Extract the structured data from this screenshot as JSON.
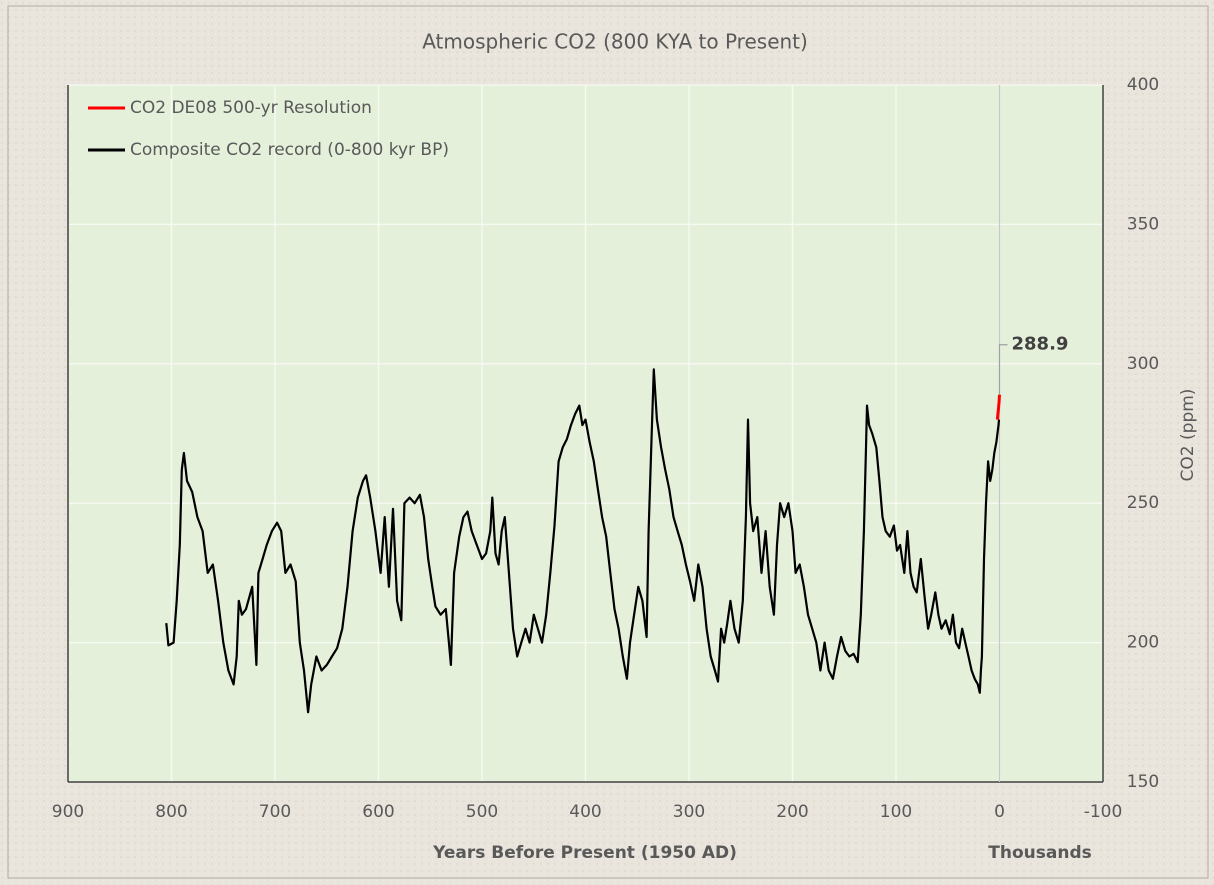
{
  "chart_data": {
    "type": "line",
    "title": "Atmospheric CO2 (800 KYA to Present)",
    "x_label": "Years Before Present (1950 AD)",
    "x_unit_label": "Thousands",
    "y_label": "CO2 (ppm)",
    "y_axis_side": "right",
    "xlim": [
      900,
      -100
    ],
    "xticks": [
      900,
      800,
      700,
      600,
      500,
      400,
      300,
      200,
      100,
      0,
      -100
    ],
    "ylim": [
      150,
      400
    ],
    "yticks": [
      150,
      200,
      250,
      300,
      350,
      400
    ],
    "grid": true,
    "legend": "upper left",
    "series": [
      {
        "name": "CO2 DE08 500-yr Resolution",
        "color": "#ff0000",
        "x": [
          2,
          1.5,
          1,
          0.5,
          0
        ],
        "values": [
          280,
          282,
          284,
          286,
          288.9
        ]
      },
      {
        "name": "Composite CO2 record (0-800 kyr BP)",
        "color": "#000000",
        "x": [
          805,
          803,
          798,
          795,
          792,
          790,
          788,
          785,
          780,
          775,
          770,
          765,
          760,
          755,
          750,
          745,
          740,
          737,
          735,
          732,
          728,
          722,
          718,
          716,
          712,
          708,
          703,
          698,
          694,
          690,
          685,
          680,
          676,
          672,
          668,
          665,
          660,
          655,
          650,
          645,
          640,
          635,
          630,
          625,
          620,
          615,
          612,
          608,
          603,
          598,
          594,
          590,
          586,
          582,
          578,
          575,
          570,
          565,
          560,
          556,
          552,
          548,
          545,
          540,
          535,
          532,
          530,
          527,
          522,
          518,
          514,
          510,
          505,
          500,
          496,
          492,
          490,
          487,
          484,
          481,
          478,
          475,
          470,
          466,
          462,
          458,
          454,
          450,
          446,
          442,
          438,
          434,
          430,
          426,
          422,
          418,
          414,
          410,
          406,
          403,
          400,
          396,
          392,
          388,
          384,
          380,
          376,
          372,
          368,
          364,
          360,
          357,
          353,
          349,
          345,
          341,
          339,
          336,
          334,
          331,
          327,
          323,
          319,
          315,
          311,
          307,
          303,
          299,
          295,
          291,
          287,
          283,
          279,
          275,
          272,
          269,
          266,
          263,
          260,
          256,
          252,
          248,
          245,
          243,
          241,
          238,
          234,
          230,
          226,
          222,
          218,
          215,
          212,
          208,
          204,
          200,
          197,
          193,
          189,
          185,
          181,
          177,
          173,
          169,
          165,
          161,
          157,
          153,
          149,
          145,
          141,
          137,
          134,
          131,
          129,
          128,
          126,
          123,
          119,
          116,
          113,
          110,
          106,
          102,
          99,
          96,
          92,
          89,
          86,
          83,
          80,
          76,
          72,
          69,
          66,
          62,
          59,
          56,
          52,
          48,
          45,
          42,
          39,
          36,
          33,
          30,
          27,
          24,
          21,
          19,
          18,
          17,
          15,
          13,
          11,
          9,
          7,
          5,
          3,
          1,
          0.5
        ],
        "values": [
          207,
          199,
          200,
          215,
          235,
          262,
          268,
          258,
          254,
          245,
          240,
          225,
          228,
          215,
          200,
          190,
          185,
          195,
          215,
          210,
          212,
          220,
          192,
          225,
          230,
          235,
          240,
          243,
          240,
          225,
          228,
          222,
          200,
          190,
          175,
          185,
          195,
          190,
          192,
          195,
          198,
          205,
          220,
          240,
          252,
          258,
          260,
          252,
          240,
          225,
          245,
          220,
          248,
          215,
          208,
          250,
          252,
          250,
          253,
          245,
          230,
          220,
          213,
          210,
          212,
          200,
          192,
          225,
          238,
          245,
          247,
          240,
          235,
          230,
          232,
          240,
          252,
          232,
          228,
          240,
          245,
          230,
          205,
          195,
          200,
          205,
          200,
          210,
          205,
          200,
          210,
          225,
          242,
          265,
          270,
          273,
          278,
          282,
          285,
          278,
          280,
          272,
          265,
          255,
          245,
          238,
          225,
          212,
          205,
          195,
          187,
          200,
          210,
          220,
          215,
          202,
          240,
          275,
          298,
          280,
          270,
          262,
          255,
          245,
          240,
          235,
          228,
          222,
          215,
          228,
          220,
          205,
          195,
          190,
          186,
          205,
          200,
          207,
          215,
          205,
          200,
          215,
          245,
          280,
          250,
          240,
          245,
          225,
          240,
          220,
          210,
          235,
          250,
          245,
          250,
          240,
          225,
          228,
          220,
          210,
          205,
          200,
          190,
          200,
          190,
          187,
          195,
          202,
          197,
          195,
          196,
          193,
          210,
          240,
          270,
          285,
          278,
          275,
          270,
          258,
          245,
          240,
          238,
          242,
          233,
          235,
          225,
          240,
          225,
          220,
          218,
          230,
          215,
          205,
          210,
          218,
          210,
          205,
          208,
          203,
          210,
          200,
          198,
          205,
          200,
          195,
          190,
          187,
          185,
          182,
          190,
          195,
          230,
          250,
          265,
          258,
          262,
          268,
          272,
          278,
          280
        ]
      }
    ],
    "annotations": [
      {
        "text": "288.9",
        "x": 0,
        "y": 288.9
      }
    ]
  }
}
